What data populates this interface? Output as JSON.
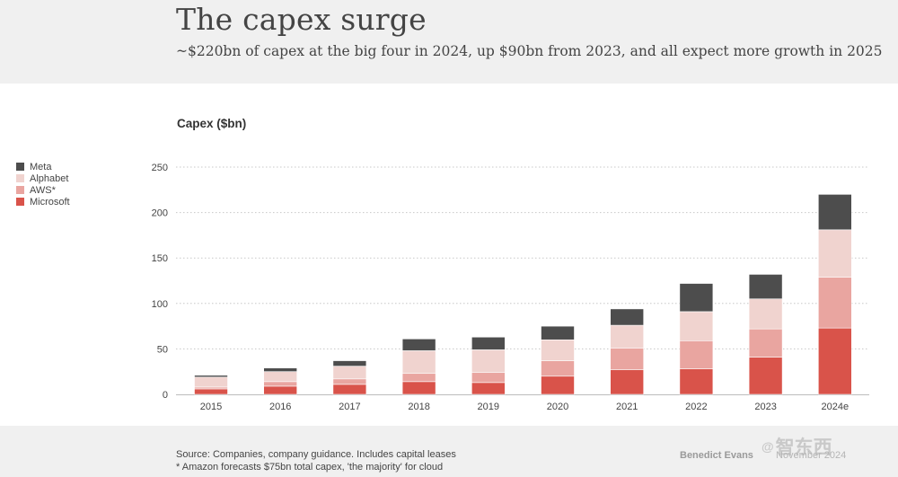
{
  "header": {
    "title": "The capex surge",
    "subtitle": "~$220bn of capex at the big four in 2024, up $90bn from 2023, and all expect more growth in 2025"
  },
  "footer": {
    "source_line1": "Source: Companies, company guidance. Includes capital leases",
    "source_line2": "* Amazon forecasts $75bn total capex, 'the majority' for cloud",
    "author": "Benedict Evans",
    "date": "November 2024",
    "watermark": "智东西"
  },
  "chart_data": {
    "type": "bar",
    "stacked": true,
    "title": "The capex surge",
    "subtitle": "~$220bn of capex at the big four in 2024, up $90bn from 2023, and all expect more growth in 2025",
    "xlabel": "",
    "ylabel": "Capex ($bn)",
    "ylim": [
      0,
      250
    ],
    "yticks": [
      0,
      50,
      100,
      150,
      200,
      250
    ],
    "grid": true,
    "legend_position": "left",
    "categories": [
      "2015",
      "2016",
      "2017",
      "2018",
      "2019",
      "2020",
      "2021",
      "2022",
      "2023",
      "2024e"
    ],
    "series": [
      {
        "name": "Microsoft",
        "color": "#d9534a",
        "values": [
          6,
          9,
          11,
          14,
          13,
          20,
          27,
          28,
          41,
          73
        ]
      },
      {
        "name": "AWS*",
        "color": "#e9a5a0",
        "values": [
          2,
          5,
          6,
          9,
          11,
          17,
          24,
          31,
          31,
          56
        ]
      },
      {
        "name": "Alphabet",
        "color": "#f0d3cf",
        "values": [
          11,
          11,
          14,
          25,
          25,
          23,
          25,
          32,
          33,
          52
        ]
      },
      {
        "name": "Meta",
        "color": "#4d4d4d",
        "values": [
          2,
          4,
          6,
          13,
          14,
          15,
          18,
          31,
          27,
          39
        ]
      }
    ],
    "legend_order": [
      "Meta",
      "Alphabet",
      "AWS*",
      "Microsoft"
    ]
  }
}
